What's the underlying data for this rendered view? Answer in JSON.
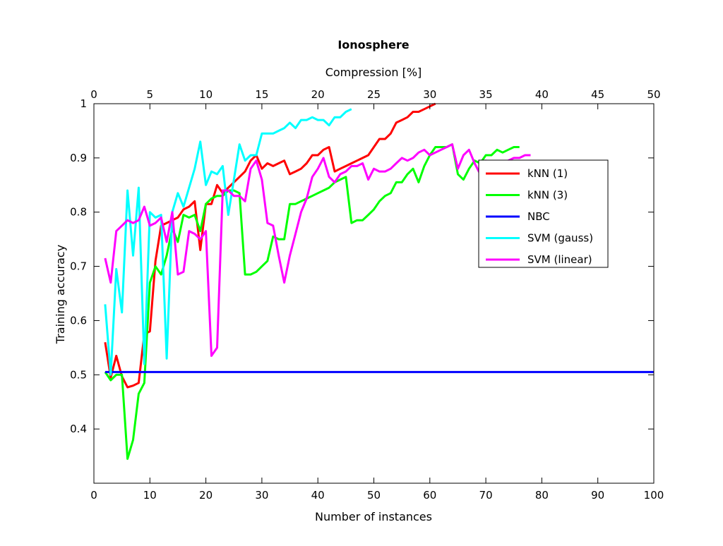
{
  "chart_data": {
    "type": "line",
    "title": "Ionosphere",
    "xlabel": "Number of instances",
    "ylabel": "Training accuracy",
    "x2label": "Compression [%]",
    "xlim": [
      0,
      100
    ],
    "ylim": [
      0.3,
      1
    ],
    "x2lim": [
      0,
      50
    ],
    "xticks": [
      "0",
      "10",
      "20",
      "30",
      "40",
      "50",
      "60",
      "70",
      "80",
      "90",
      "100"
    ],
    "yticks": [
      "0.4",
      "0.5",
      "0.6",
      "0.7",
      "0.8",
      "0.9",
      "1"
    ],
    "x2ticks": [
      "0",
      "5",
      "10",
      "15",
      "20",
      "25",
      "30",
      "35",
      "40",
      "45",
      "50"
    ],
    "grid": false,
    "legend_position": "right",
    "series": [
      {
        "name": "kNN (1)",
        "color": "#ff0000",
        "x": [
          2,
          3,
          4,
          5,
          6,
          7,
          8,
          9,
          10,
          11,
          12,
          13,
          14,
          15,
          16,
          17,
          18,
          19,
          20,
          21,
          22,
          23,
          24,
          25,
          26,
          27,
          28,
          29,
          30,
          31,
          32,
          33,
          34,
          35,
          36,
          37,
          38,
          39,
          40,
          41,
          42,
          43,
          44,
          45,
          46,
          47,
          48,
          49,
          50,
          51,
          52,
          53,
          54,
          55,
          56,
          57,
          58,
          59,
          60,
          61
        ],
        "y": [
          0.56,
          0.495,
          0.535,
          0.497,
          0.477,
          0.48,
          0.485,
          0.575,
          0.58,
          0.71,
          0.775,
          0.78,
          0.785,
          0.79,
          0.805,
          0.81,
          0.82,
          0.73,
          0.815,
          0.815,
          0.85,
          0.835,
          0.845,
          0.855,
          0.865,
          0.875,
          0.895,
          0.905,
          0.88,
          0.89,
          0.885,
          0.89,
          0.895,
          0.87,
          0.875,
          0.88,
          0.89,
          0.905,
          0.905,
          0.915,
          0.92,
          0.875,
          0.88,
          0.885,
          0.89,
          0.895,
          0.9,
          0.905,
          0.92,
          0.935,
          0.935,
          0.945,
          0.965,
          0.97,
          0.975,
          0.985,
          0.985,
          0.99,
          0.995,
          1.0
        ]
      },
      {
        "name": "kNN (3)",
        "color": "#00ff00",
        "x": [
          2,
          3,
          4,
          5,
          6,
          7,
          8,
          9,
          10,
          11,
          12,
          13,
          14,
          15,
          16,
          17,
          18,
          19,
          20,
          21,
          22,
          23,
          24,
          25,
          26,
          27,
          28,
          29,
          30,
          31,
          32,
          33,
          34,
          35,
          36,
          37,
          38,
          39,
          40,
          41,
          42,
          43,
          44,
          45,
          46,
          47,
          48,
          49,
          50,
          51,
          52,
          53,
          54,
          55,
          56,
          57,
          58,
          59,
          60,
          61,
          62,
          63,
          64,
          65,
          66,
          67,
          68,
          69,
          70,
          71,
          72,
          73,
          74,
          75,
          76
        ],
        "y": [
          0.505,
          0.49,
          0.5,
          0.5,
          0.345,
          0.38,
          0.465,
          0.485,
          0.67,
          0.7,
          0.685,
          0.72,
          0.77,
          0.745,
          0.795,
          0.79,
          0.795,
          0.765,
          0.815,
          0.825,
          0.83,
          0.83,
          0.84,
          0.84,
          0.835,
          0.685,
          0.685,
          0.69,
          0.7,
          0.71,
          0.755,
          0.75,
          0.75,
          0.815,
          0.815,
          0.82,
          0.825,
          0.83,
          0.835,
          0.84,
          0.845,
          0.855,
          0.86,
          0.865,
          0.78,
          0.785,
          0.785,
          0.795,
          0.805,
          0.82,
          0.83,
          0.835,
          0.855,
          0.855,
          0.87,
          0.88,
          0.855,
          0.885,
          0.905,
          0.92,
          0.92,
          0.92,
          0.925,
          0.87,
          0.86,
          0.88,
          0.895,
          0.89,
          0.905,
          0.905,
          0.915,
          0.91,
          0.915,
          0.92,
          0.92
        ]
      },
      {
        "name": "NBC",
        "color": "#0000ff",
        "x": [
          2,
          100
        ],
        "y": [
          0.505,
          0.505
        ]
      },
      {
        "name": "SVM (gauss)",
        "color": "#00ffff",
        "x": [
          2,
          3,
          4,
          5,
          6,
          7,
          8,
          9,
          10,
          11,
          12,
          13,
          14,
          15,
          16,
          17,
          18,
          19,
          20,
          21,
          22,
          23,
          24,
          25,
          26,
          27,
          28,
          29,
          30,
          31,
          32,
          33,
          34,
          35,
          36,
          37,
          38,
          39,
          40,
          41,
          42,
          43,
          44,
          45,
          46
        ],
        "y": [
          0.63,
          0.5,
          0.695,
          0.615,
          0.84,
          0.72,
          0.845,
          0.52,
          0.8,
          0.79,
          0.795,
          0.53,
          0.8,
          0.835,
          0.81,
          0.845,
          0.88,
          0.93,
          0.85,
          0.875,
          0.87,
          0.885,
          0.795,
          0.86,
          0.925,
          0.895,
          0.905,
          0.905,
          0.945,
          0.945,
          0.945,
          0.95,
          0.955,
          0.965,
          0.955,
          0.97,
          0.97,
          0.975,
          0.97,
          0.97,
          0.96,
          0.975,
          0.975,
          0.985,
          0.99
        ]
      },
      {
        "name": "SVM (linear)",
        "color": "#ff00ff",
        "x": [
          2,
          3,
          4,
          5,
          6,
          7,
          8,
          9,
          10,
          11,
          12,
          13,
          14,
          15,
          16,
          17,
          18,
          19,
          20,
          21,
          22,
          23,
          24,
          25,
          26,
          27,
          28,
          29,
          30,
          31,
          32,
          33,
          34,
          35,
          36,
          37,
          38,
          39,
          40,
          41,
          42,
          43,
          44,
          45,
          46,
          47,
          48,
          49,
          50,
          51,
          52,
          53,
          54,
          55,
          56,
          57,
          58,
          59,
          60,
          61,
          62,
          63,
          64,
          65,
          66,
          67,
          68,
          69,
          70,
          71,
          72,
          73,
          74,
          75,
          76,
          77,
          78
        ],
        "y": [
          0.715,
          0.67,
          0.765,
          0.775,
          0.785,
          0.78,
          0.785,
          0.81,
          0.775,
          0.78,
          0.79,
          0.745,
          0.8,
          0.685,
          0.69,
          0.765,
          0.76,
          0.75,
          0.765,
          0.535,
          0.55,
          0.84,
          0.84,
          0.83,
          0.83,
          0.82,
          0.88,
          0.895,
          0.86,
          0.78,
          0.775,
          0.72,
          0.67,
          0.72,
          0.76,
          0.8,
          0.825,
          0.865,
          0.88,
          0.9,
          0.865,
          0.855,
          0.87,
          0.875,
          0.885,
          0.885,
          0.89,
          0.86,
          0.88,
          0.875,
          0.875,
          0.88,
          0.89,
          0.9,
          0.895,
          0.9,
          0.91,
          0.915,
          0.905,
          0.91,
          0.915,
          0.92,
          0.925,
          0.88,
          0.905,
          0.915,
          0.89,
          0.87,
          0.895,
          0.88,
          0.885,
          0.89,
          0.895,
          0.9,
          0.9,
          0.905,
          0.905
        ]
      }
    ]
  }
}
